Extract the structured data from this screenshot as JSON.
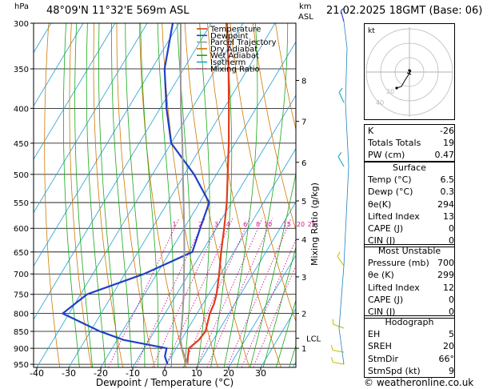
{
  "header": {
    "p_unit": "hPa",
    "station": "48°09'N  11°32'E  569m  ASL",
    "km_label": "km",
    "asl_label": "ASL",
    "valid_time": "21.02.2025  18GMT  (Base: 06)"
  },
  "legend": [
    {
      "label": "Temperature",
      "color": "#e03c1c"
    },
    {
      "label": "Dewpoint",
      "color": "#2040c8"
    },
    {
      "label": "Parcel Trajectory",
      "color": "#999999"
    },
    {
      "label": "Dry Adiabat",
      "color": "#d07800"
    },
    {
      "label": "Wet Adiabat",
      "color": "#18a818"
    },
    {
      "label": "Isotherm",
      "color": "#20a0d8"
    },
    {
      "label": "Mixing Ratio",
      "color": "#d01890"
    }
  ],
  "axes": {
    "xlabel": "Dewpoint / Temperature (°C)",
    "ylabel_right": "Mixing Ratio (g/kg)"
  },
  "copyright": "© weatheronline.co.uk",
  "chart_data": {
    "type": "line",
    "pressure_levels": [
      300,
      350,
      400,
      450,
      500,
      550,
      600,
      650,
      700,
      750,
      800,
      850,
      900,
      950
    ],
    "x_ticks": [
      -40,
      -30,
      -20,
      -10,
      0,
      10,
      20,
      30
    ],
    "xlim": [
      -41,
      41
    ],
    "ylim_hpa": [
      300,
      960
    ],
    "km_ticks": [
      {
        "km": "8",
        "p": 364
      },
      {
        "km": "7",
        "p": 418
      },
      {
        "km": "6",
        "p": 480
      },
      {
        "km": "5",
        "p": 547
      },
      {
        "km": "4",
        "p": 623
      },
      {
        "km": "3",
        "p": 707
      },
      {
        "km": "2",
        "p": 800
      },
      {
        "km": "1",
        "p": 900
      }
    ],
    "lcl": {
      "label": "LCL",
      "p": 870
    },
    "mixing_ratio_labels": [
      "1",
      "2",
      "3",
      "4",
      "6",
      "8",
      "10",
      "15",
      "20",
      "25"
    ],
    "mixing_ratios": [
      1,
      2,
      3,
      4,
      6,
      8,
      10,
      15,
      20,
      25
    ],
    "series": [
      {
        "name": "Temperature",
        "color": "#e03c1c",
        "points": [
          [
            950,
            6.5
          ],
          [
            925,
            5.2
          ],
          [
            900,
            4.0
          ],
          [
            875,
            5.5
          ],
          [
            850,
            6.0
          ],
          [
            800,
            4.0
          ],
          [
            775,
            3.5
          ],
          [
            750,
            2.5
          ],
          [
            700,
            -0.5
          ],
          [
            650,
            -4.0
          ],
          [
            600,
            -7.5
          ],
          [
            550,
            -11.5
          ],
          [
            500,
            -16.5
          ],
          [
            450,
            -22.0
          ],
          [
            400,
            -28.5
          ],
          [
            350,
            -36.0
          ],
          [
            300,
            -45.0
          ]
        ]
      },
      {
        "name": "Dewpoint",
        "color": "#2040c8",
        "points": [
          [
            950,
            0.3
          ],
          [
            925,
            -2.0
          ],
          [
            900,
            -3.0
          ],
          [
            875,
            -18.0
          ],
          [
            850,
            -27.0
          ],
          [
            800,
            -42.0
          ],
          [
            750,
            -38.0
          ],
          [
            700,
            -24.0
          ],
          [
            650,
            -13.0
          ],
          [
            600,
            -15.0
          ],
          [
            550,
            -17.0
          ],
          [
            500,
            -27.0
          ],
          [
            450,
            -40.0
          ],
          [
            400,
            -48.0
          ],
          [
            350,
            -56.0
          ],
          [
            300,
            -62.0
          ]
        ]
      },
      {
        "name": "Parcel Trajectory",
        "color": "#999999",
        "points": [
          [
            950,
            6.5
          ],
          [
            900,
            1.8
          ],
          [
            870,
            -0.6
          ],
          [
            850,
            -1.6
          ],
          [
            800,
            -4.5
          ],
          [
            750,
            -7.8
          ],
          [
            700,
            -11.5
          ],
          [
            650,
            -15.5
          ],
          [
            600,
            -20.0
          ],
          [
            550,
            -25.0
          ],
          [
            500,
            -30.5
          ],
          [
            450,
            -36.5
          ],
          [
            400,
            -43.5
          ],
          [
            350,
            -51.0
          ],
          [
            300,
            -59.5
          ]
        ]
      }
    ]
  },
  "hodograph": {
    "label": "kt",
    "ring_labels": [
      "20",
      "40"
    ],
    "direction_deg": 66,
    "speed_kt": 9
  },
  "indices": {
    "basic": [
      {
        "k": "K",
        "v": "-26"
      },
      {
        "k": "Totals Totals",
        "v": "19"
      },
      {
        "k": "PW (cm)",
        "v": "0.47"
      }
    ],
    "surface_title": "Surface",
    "surface": [
      {
        "k": "Temp (°C)",
        "v": "6.5"
      },
      {
        "k": "Dewp (°C)",
        "v": "0.3"
      },
      {
        "k": "θe(K)",
        "v": "294"
      },
      {
        "k": "Lifted Index",
        "v": "13"
      },
      {
        "k": "CAPE (J)",
        "v": "0"
      },
      {
        "k": "CIN (J)",
        "v": "0"
      }
    ],
    "unstable_title": "Most Unstable",
    "unstable": [
      {
        "k": "Pressure (mb)",
        "v": "700"
      },
      {
        "k": "θe (K)",
        "v": "299"
      },
      {
        "k": "Lifted Index",
        "v": "12"
      },
      {
        "k": "CAPE (J)",
        "v": "0"
      },
      {
        "k": "CIN (J)",
        "v": "0"
      }
    ],
    "hodo_title": "Hodograph",
    "hodo": [
      {
        "k": "EH",
        "v": "5"
      },
      {
        "k": "SREH",
        "v": "20"
      },
      {
        "k": "StmDir",
        "v": "66°"
      },
      {
        "k": "StmSpd (kt)",
        "v": "9"
      }
    ]
  }
}
